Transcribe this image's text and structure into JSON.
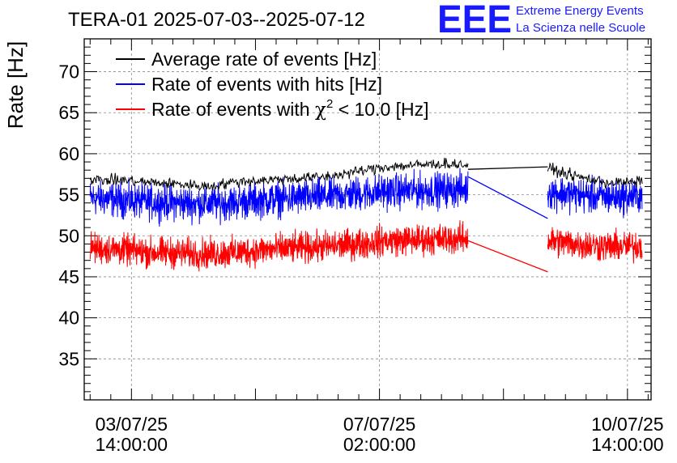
{
  "chart_data": {
    "type": "line",
    "title": "TERA-01 2025-07-03--2025-07-12",
    "ylabel": "Rate [Hz]",
    "xlabel": "",
    "ylim": [
      30,
      74
    ],
    "yticks": [
      35,
      40,
      45,
      50,
      55,
      60,
      65,
      70
    ],
    "x_unit": "hours since 03/07/25 00:00:00",
    "xlim": [
      -2,
      190
    ],
    "xticks": [
      {
        "x": 14,
        "date": "03/07/25",
        "time": "14:00:00"
      },
      {
        "x": 98,
        "date": "07/07/25",
        "time": "02:00:00"
      },
      {
        "x": 182,
        "date": "10/07/25",
        "time": "14:00:00"
      }
    ],
    "grid": true,
    "legend_position": "top-left",
    "series": [
      {
        "name": "Average rate of events [Hz]",
        "color": "#000000",
        "noise": 0.5,
        "points": [
          [
            0,
            56.8
          ],
          [
            10,
            56.8
          ],
          [
            20,
            56.5
          ],
          [
            30,
            56.3
          ],
          [
            40,
            56.0
          ],
          [
            50,
            56.6
          ],
          [
            60,
            56.8
          ],
          [
            70,
            57.0
          ],
          [
            80,
            57.2
          ],
          [
            90,
            57.8
          ],
          [
            100,
            58.4
          ],
          [
            110,
            58.6
          ],
          [
            120,
            58.8
          ],
          [
            128,
            58.6
          ]
        ],
        "gap_segment": [
          [
            128,
            58.1
          ],
          [
            155,
            58.4
          ]
        ],
        "after_gap": [
          [
            155,
            58.2
          ],
          [
            165,
            57.2
          ],
          [
            175,
            56.5
          ],
          [
            185,
            56.5
          ],
          [
            187,
            56.8
          ]
        ]
      },
      {
        "name": "Rate of events with hits [Hz]",
        "color": "#0000ff",
        "noise": 1.6,
        "points": [
          [
            0,
            54.6
          ],
          [
            10,
            54.4
          ],
          [
            20,
            54.1
          ],
          [
            30,
            54.0
          ],
          [
            40,
            53.9
          ],
          [
            50,
            54.1
          ],
          [
            60,
            54.4
          ],
          [
            70,
            54.6
          ],
          [
            80,
            54.8
          ],
          [
            90,
            55.1
          ],
          [
            100,
            55.4
          ],
          [
            110,
            55.5
          ],
          [
            120,
            55.6
          ],
          [
            128,
            55.7
          ]
        ],
        "gap_segment": [
          [
            128,
            57.2
          ],
          [
            155,
            52.1
          ]
        ],
        "after_gap": [
          [
            155,
            55.4
          ],
          [
            165,
            55.0
          ],
          [
            175,
            54.7
          ],
          [
            185,
            54.8
          ],
          [
            187,
            55.0
          ]
        ]
      },
      {
        "name": "Rate of events with χ2 < 10.0 [Hz]",
        "name_parts": {
          "pre": "Rate of events with ",
          "chi": "χ",
          "sup": "2",
          "post": " < 10.0 [Hz]"
        },
        "color": "#ff0000",
        "noise": 1.4,
        "points": [
          [
            0,
            48.5
          ],
          [
            10,
            48.3
          ],
          [
            20,
            48.0
          ],
          [
            30,
            47.9
          ],
          [
            40,
            47.8
          ],
          [
            50,
            48.0
          ],
          [
            60,
            48.3
          ],
          [
            70,
            48.5
          ],
          [
            80,
            48.7
          ],
          [
            90,
            49.0
          ],
          [
            100,
            49.4
          ],
          [
            110,
            49.5
          ],
          [
            120,
            49.6
          ],
          [
            128,
            49.7
          ]
        ],
        "gap_segment": [
          [
            128,
            49.4
          ],
          [
            155,
            45.6
          ]
        ],
        "after_gap": [
          [
            155,
            49.4
          ],
          [
            165,
            49.0
          ],
          [
            175,
            48.7
          ],
          [
            185,
            48.7
          ],
          [
            187,
            49.0
          ]
        ]
      }
    ]
  },
  "logo": {
    "mark": "EEE",
    "line1": "Extreme Energy Events",
    "line2": "La Scienza nelle Scuole"
  }
}
